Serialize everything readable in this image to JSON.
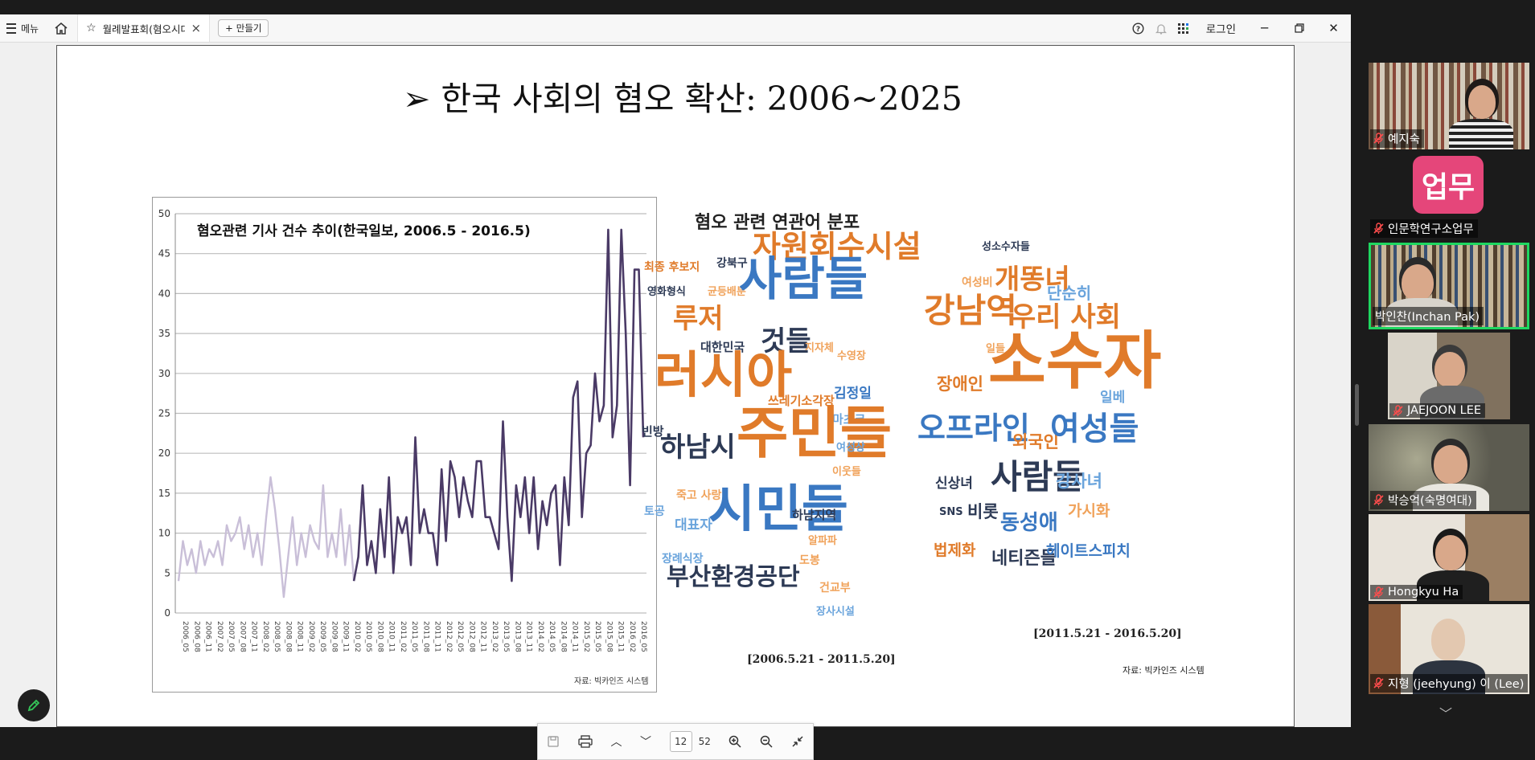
{
  "tabbar": {
    "menu_label": "메뉴",
    "tab_title": "월례발표회(혐오시대...",
    "tab_close": "×",
    "new_button": "만들기",
    "login_label": "로그인"
  },
  "slide": {
    "title": "➢ 한국 사회의 혐오 확산: 2006~2025",
    "chart_title": "혐오관련 기사 건수 추이(한국일보, 2006.5 - 2016.5)",
    "source_label": "자료: 빅카인즈 시스템",
    "wordcloud_title": "혐오 관련 연관어 분포",
    "cloud1_period": "[2006.5.21 - 2011.5.20]",
    "cloud2_period": "[2011.5.21 - 2016.5.20]",
    "cloud2_source": "자료: 빅카인즈 시스템",
    "cloud1_words": [
      {
        "text": "최종 후보지"
      },
      {
        "text": "강북구"
      },
      {
        "text": "자원회수시설"
      },
      {
        "text": "영화형식"
      },
      {
        "text": "균등배분"
      },
      {
        "text": "사람들"
      },
      {
        "text": "루저"
      },
      {
        "text": "대한민국"
      },
      {
        "text": "것들"
      },
      {
        "text": "지자체"
      },
      {
        "text": "수영장"
      },
      {
        "text": "러시아"
      },
      {
        "text": "쓰레기소각장"
      },
      {
        "text": "김정일"
      },
      {
        "text": "마초크"
      },
      {
        "text": "빈방"
      },
      {
        "text": "하남시"
      },
      {
        "text": "주민들"
      },
      {
        "text": "여성상"
      },
      {
        "text": "이웃들"
      },
      {
        "text": "죽고 사랑"
      },
      {
        "text": "토공"
      },
      {
        "text": "대표자"
      },
      {
        "text": "시민들"
      },
      {
        "text": "하남지역"
      },
      {
        "text": "알파파"
      },
      {
        "text": "장례식장"
      },
      {
        "text": "도봉"
      },
      {
        "text": "부산환경공단"
      },
      {
        "text": "건교부"
      },
      {
        "text": "장사시설"
      }
    ],
    "cloud2_words": [
      {
        "text": "성소수자들"
      },
      {
        "text": "여성비"
      },
      {
        "text": "개똥녀"
      },
      {
        "text": "단순히"
      },
      {
        "text": "강남역"
      },
      {
        "text": "일들"
      },
      {
        "text": "우리 사회"
      },
      {
        "text": "장애인"
      },
      {
        "text": "소수자"
      },
      {
        "text": "일베"
      },
      {
        "text": "오프라인"
      },
      {
        "text": "외국인"
      },
      {
        "text": "여성들"
      },
      {
        "text": "신상녀"
      },
      {
        "text": "사람들"
      },
      {
        "text": "강사녀"
      },
      {
        "text": "SNS"
      },
      {
        "text": "비롯"
      },
      {
        "text": "동성애"
      },
      {
        "text": "가시화"
      },
      {
        "text": "법제화"
      },
      {
        "text": "네티즌들"
      },
      {
        "text": "헤이트스피치"
      }
    ]
  },
  "chart_data": {
    "type": "line",
    "title": "혐오관련 기사 건수 추이(한국일보, 2006.5 - 2016.5)",
    "ylim": [
      0,
      50
    ],
    "yticks": [
      0,
      5,
      10,
      15,
      20,
      25,
      30,
      35,
      40,
      45,
      50
    ],
    "xticks": [
      "2006_05",
      "2006_08",
      "2006_11",
      "2007_02",
      "2007_05",
      "2007_08",
      "2007_11",
      "2008_02",
      "2008_05",
      "2008_08",
      "2008_11",
      "2009_02",
      "2009_05",
      "2009_08",
      "2009_11",
      "2010_02",
      "2010_05",
      "2010_08",
      "2010_11",
      "2011_02",
      "2011_05",
      "2011_08",
      "2011_11",
      "2012_02",
      "2012_05",
      "2012_08",
      "2012_11",
      "2013_02",
      "2013_05",
      "2013_08",
      "2013_11",
      "2014_02",
      "2014_05",
      "2014_08",
      "2014_11",
      "2015_02",
      "2015_05",
      "2015_08",
      "2015_11",
      "2016_02",
      "2016_05"
    ],
    "values": [
      4,
      9,
      6,
      8,
      5,
      9,
      6,
      8,
      7,
      9,
      6,
      11,
      9,
      10,
      12,
      8,
      11,
      7,
      10,
      6,
      12,
      17,
      13,
      8,
      2,
      7,
      12,
      6,
      10,
      7,
      11,
      9,
      8,
      16,
      7,
      10,
      7,
      13,
      6,
      11,
      4,
      7,
      16,
      6,
      9,
      5,
      13,
      7,
      17,
      5,
      12,
      10,
      12,
      6,
      22,
      10,
      13,
      10,
      10,
      6,
      18,
      9,
      19,
      17,
      12,
      17,
      14,
      12,
      19,
      19,
      12,
      12,
      10,
      8,
      24,
      12,
      4,
      16,
      12,
      17,
      10,
      17,
      8,
      14,
      11,
      15,
      16,
      6,
      17,
      11,
      27,
      29,
      12,
      20,
      21,
      30,
      24,
      26,
      48,
      22,
      26,
      48,
      35,
      16,
      43,
      43,
      22
    ]
  },
  "pdf_toolbar": {
    "current_page": "12",
    "total_pages": "52"
  },
  "participants": [
    {
      "name": "예지숙"
    },
    {
      "name": "인문학연구소업무",
      "avatar": "업무"
    },
    {
      "name": "박인찬(Inchan Pak)"
    },
    {
      "name": "JAEJOON LEE"
    },
    {
      "name": "박승억(숙명여대)"
    },
    {
      "name": "Hongkyu Ha"
    },
    {
      "name": "지형 (jeehyung) 이 (Lee)"
    }
  ],
  "colors": {
    "accent_active": "#1ed760",
    "avatar_bg": "#e5467a",
    "line": "#4a3a66"
  }
}
